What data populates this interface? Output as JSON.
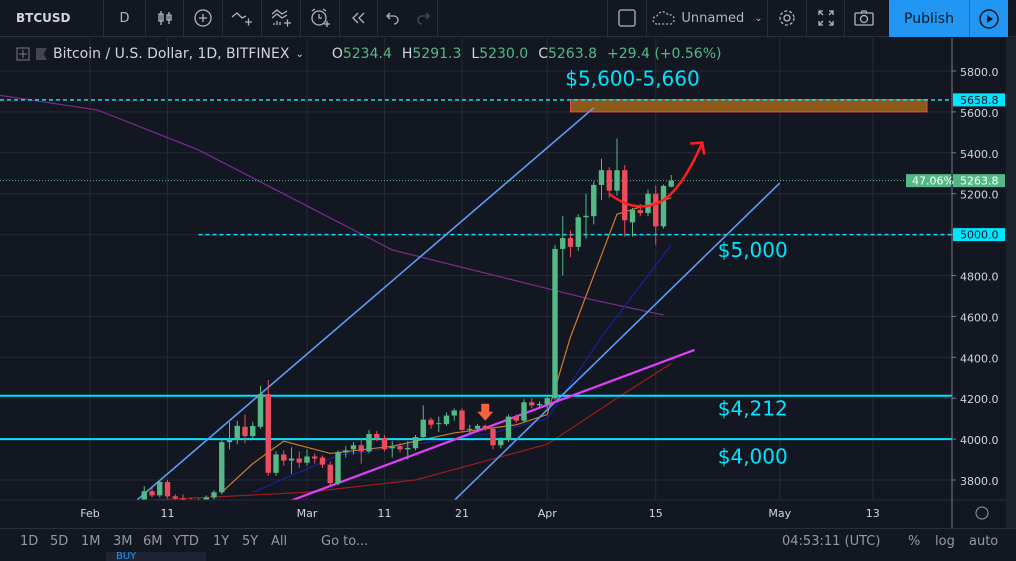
{
  "toolbar": {
    "symbol": "BTCUSD",
    "interval": "D",
    "layout_name": "Unnamed",
    "publish": "Publish",
    "icons": [
      "candles-icon",
      "add-circle-icon",
      "indicators-icon",
      "compare-icon",
      "alert-icon",
      "replay-icon",
      "undo-icon",
      "redo-icon",
      "square-icon",
      "cloud-icon",
      "gear-icon",
      "fullscreen-icon",
      "camera-icon",
      "play-icon"
    ]
  },
  "legend": {
    "title": "Bitcoin / U.S. Dollar, 1D, BITFINEX",
    "o_label": "O",
    "o": "5234.4",
    "h_label": "H",
    "h": "5291.3",
    "l_label": "L",
    "l": "5230.0",
    "c_label": "C",
    "c": "5263.8",
    "change": "+29.4 (+0.56%)"
  },
  "bottom": {
    "ranges": [
      "1D",
      "5D",
      "1M",
      "3M",
      "6M",
      "YTD",
      "1Y",
      "5Y",
      "All"
    ],
    "goto": "Go to...",
    "time": "04:53:11 (UTC)",
    "pct": "%",
    "log": "log",
    "auto": "auto",
    "buy": "BUY"
  },
  "colors": {
    "up": "#53b987",
    "down": "#eb4d5c",
    "cyan": "#00e5ff",
    "magenta": "#e040fb",
    "channel": "#5b9cf6",
    "zone": "#8d5a1a",
    "arrow": "#ff1f1f"
  },
  "chart_data": {
    "type": "candlestick",
    "ylim": [
      3700,
      5900
    ],
    "yticks": [
      "5800.0",
      "5600.0",
      "5400.0",
      "5200.0",
      "5000.0",
      "4800.0",
      "4600.0",
      "4400.0",
      "4200.0",
      "4000.0",
      "3800.0"
    ],
    "xticks": [
      [
        "Feb",
        "Feb 1"
      ],
      [
        "11",
        "Feb 11"
      ],
      [
        "Mar",
        "Mar 1"
      ],
      [
        "11",
        "Mar 11"
      ],
      [
        "21",
        "Mar 21"
      ],
      [
        "Apr",
        "Apr 1"
      ],
      [
        "15",
        "Apr 15"
      ],
      [
        "May",
        "May 1"
      ],
      [
        "13",
        "May 13"
      ]
    ],
    "price_tags": [
      {
        "text": "5658.8",
        "price": 5658.8,
        "color": "#00e5ff"
      },
      {
        "text": "5263.8",
        "price": 5263.8,
        "color": "#53b987",
        "extra": "47.06%"
      },
      {
        "text": "5000.0",
        "price": 5000,
        "color": "#00e5ff"
      }
    ],
    "ohlc": [
      [
        "Feb 8",
        3700,
        3770,
        3690,
        3745
      ],
      [
        "Feb 9",
        3745,
        3760,
        3715,
        3725
      ],
      [
        "Feb 10",
        3725,
        3800,
        3715,
        3790
      ],
      [
        "Feb 11",
        3790,
        3800,
        3710,
        3720
      ],
      [
        "Feb 12",
        3720,
        3730,
        3690,
        3710
      ],
      [
        "Feb 13",
        3710,
        3730,
        3690,
        3700
      ],
      [
        "Feb 14",
        3700,
        3715,
        3680,
        3690
      ],
      [
        "Feb 15",
        3690,
        3710,
        3680,
        3705
      ],
      [
        "Feb 16",
        3705,
        3725,
        3695,
        3715
      ],
      [
        "Feb 17",
        3715,
        3750,
        3705,
        3740
      ],
      [
        "Feb 18",
        3740,
        4000,
        3730,
        3985
      ],
      [
        "Feb 19",
        3985,
        4083,
        3950,
        4000
      ],
      [
        "Feb 20",
        3995,
        4090,
        3975,
        4065
      ],
      [
        "Feb 21",
        4060,
        4120,
        3980,
        4015
      ],
      [
        "Feb 22",
        4015,
        4085,
        4000,
        4064
      ],
      [
        "Feb 23",
        4060,
        4260,
        4050,
        4220
      ],
      [
        "Feb 24",
        4220,
        4289,
        3820,
        3835
      ],
      [
        "Feb 25",
        3835,
        3940,
        3820,
        3925
      ],
      [
        "Feb 26",
        3925,
        3945,
        3870,
        3895
      ],
      [
        "Feb 27",
        3895,
        3960,
        3830,
        3905
      ],
      [
        "Feb 28",
        3905,
        3940,
        3860,
        3885
      ],
      [
        "Mar 1",
        3885,
        3950,
        3870,
        3915
      ],
      [
        "Mar 2",
        3915,
        3930,
        3880,
        3905
      ],
      [
        "Mar 3",
        3910,
        3920,
        3860,
        3875
      ],
      [
        "Mar 4",
        3875,
        3890,
        3770,
        3785
      ],
      [
        "Mar 5",
        3785,
        3945,
        3775,
        3935
      ],
      [
        "Mar 6",
        3935,
        3965,
        3910,
        3945
      ],
      [
        "Mar 7",
        3950,
        3985,
        3925,
        3970
      ],
      [
        "Mar 8",
        3970,
        4000,
        3880,
        3940
      ],
      [
        "Mar 9",
        3940,
        4045,
        3930,
        4025
      ],
      [
        "Mar 10",
        4025,
        4040,
        3990,
        4005
      ],
      [
        "Mar 11",
        4005,
        4020,
        3940,
        3950
      ],
      [
        "Mar 12",
        3955,
        3990,
        3910,
        3962
      ],
      [
        "Mar 13",
        3965,
        3980,
        3935,
        3950
      ],
      [
        "Mar 14",
        3950,
        3990,
        3900,
        3957
      ],
      [
        "Mar 15",
        3955,
        4020,
        3945,
        4010
      ],
      [
        "Mar 16",
        4010,
        4165,
        4000,
        4095
      ],
      [
        "Mar 17",
        4095,
        4105,
        4050,
        4070
      ],
      [
        "Mar 18",
        4075,
        4110,
        4035,
        4078
      ],
      [
        "Mar 19",
        4073,
        4130,
        4065,
        4115
      ],
      [
        "Mar 20",
        4115,
        4150,
        4090,
        4140
      ],
      [
        "Mar 21",
        4140,
        4150,
        4035,
        4045
      ],
      [
        "Mar 22",
        4045,
        4070,
        4030,
        4050
      ],
      [
        "Mar 23",
        4050,
        4075,
        4040,
        4065
      ],
      [
        "Mar 24",
        4065,
        4070,
        4040,
        4050
      ],
      [
        "Mar 25",
        4050,
        4060,
        3950,
        3970
      ],
      [
        "Mar 26",
        3970,
        4010,
        3955,
        3995
      ],
      [
        "Mar 27",
        3995,
        4120,
        3985,
        4110
      ],
      [
        "Mar 28",
        4110,
        4120,
        4080,
        4090
      ],
      [
        "Mar 29",
        4090,
        4195,
        4080,
        4180
      ],
      [
        "Mar 30",
        4180,
        4200,
        4150,
        4165
      ],
      [
        "Mar 31",
        4165,
        4185,
        4155,
        4172
      ],
      [
        "Apr 1",
        4170,
        4215,
        4150,
        4200
      ],
      [
        "Apr 2",
        4200,
        4950,
        4190,
        4930
      ],
      [
        "Apr 3",
        4930,
        5090,
        4800,
        4983
      ],
      [
        "Apr 4",
        4983,
        5020,
        4890,
        4940
      ],
      [
        "Apr 5",
        4940,
        5100,
        4920,
        5085
      ],
      [
        "Apr 6",
        5085,
        5200,
        4980,
        5092
      ],
      [
        "Apr 7",
        5090,
        5260,
        5050,
        5243
      ],
      [
        "Apr 8",
        5243,
        5370,
        5170,
        5315
      ],
      [
        "Apr 9",
        5315,
        5330,
        5180,
        5215
      ],
      [
        "Apr 10",
        5215,
        5470,
        5190,
        5315
      ],
      [
        "Apr 11",
        5315,
        5340,
        4990,
        5070
      ],
      [
        "Apr 12",
        5060,
        5130,
        4990,
        5120
      ],
      [
        "Apr 13",
        5120,
        5150,
        5090,
        5105
      ],
      [
        "Apr 14",
        5105,
        5220,
        5090,
        5200
      ],
      [
        "Apr 15",
        5200,
        5240,
        4950,
        5040
      ],
      [
        "Apr 16",
        5040,
        5245,
        5030,
        5238
      ],
      [
        "Apr 17",
        5234.4,
        5291.3,
        5230.0,
        5263.8
      ]
    ],
    "moving_averages": [
      {
        "color": "#7b2d8e",
        "points": [
          [
            "Jan 20",
            5683
          ],
          [
            "Feb 2",
            5609
          ],
          [
            "Feb 15",
            5414
          ],
          [
            "Mar 12",
            4925
          ],
          [
            "Apr 7",
            4680
          ],
          [
            "Apr 16",
            4607
          ]
        ]
      },
      {
        "color": "#c97d2b",
        "points": [
          [
            "Feb 18",
            3740
          ],
          [
            "Feb 22",
            3880
          ],
          [
            "Feb 26",
            3990
          ],
          [
            "Mar 4",
            3930
          ],
          [
            "Mar 12",
            3965
          ],
          [
            "Mar 20",
            4030
          ],
          [
            "Mar 28",
            4070
          ],
          [
            "Apr 1",
            4120
          ],
          [
            "Apr 4",
            4500
          ],
          [
            "Apr 7",
            4800
          ],
          [
            "Apr 10",
            5100
          ],
          [
            "Apr 17",
            5180
          ]
        ]
      },
      {
        "color": "#1c1f9e",
        "points": [
          [
            "Feb 22",
            3740
          ],
          [
            "Mar 5",
            3920
          ],
          [
            "Mar 25",
            4030
          ],
          [
            "Apr 1",
            4100
          ],
          [
            "Apr 8",
            4500
          ],
          [
            "Apr 17",
            4950
          ]
        ]
      },
      {
        "color": "#9b1c1c",
        "points": [
          [
            "Feb 8",
            3700
          ],
          [
            "Mar 1",
            3740
          ],
          [
            "Mar 15",
            3800
          ],
          [
            "Apr 1",
            3975
          ],
          [
            "Apr 10",
            4200
          ],
          [
            "Apr 17",
            4370
          ]
        ]
      }
    ],
    "drawings": {
      "channel_upper": [
        [
          "Feb 7",
          3700
        ],
        [
          "Apr 7",
          5620
        ]
      ],
      "channel_lower": [
        [
          "Mar 20",
          3700
        ],
        [
          "May 1",
          5252
        ]
      ],
      "trendline": [
        [
          "Feb 27",
          3700
        ],
        [
          "Apr 20",
          4436
        ]
      ],
      "hlines": [
        {
          "price": 4212,
          "style": "solid"
        },
        {
          "price": 4000,
          "style": "solid"
        },
        {
          "price": 5000,
          "style": "dashed",
          "from": "Feb 15"
        },
        {
          "price": 5658.8,
          "style": "dashed"
        }
      ],
      "zone": {
        "from": "Apr 4",
        "to": "May 20",
        "low": 5600,
        "high": 5660
      },
      "arrow_path": [
        [
          "Apr 9",
          5200
        ],
        [
          "Apr 12",
          5110
        ],
        [
          "Apr 15",
          5150
        ],
        [
          "Apr 21",
          5450
        ]
      ],
      "marker": {
        "date": "Mar 24",
        "price": 4090
      },
      "labels": [
        {
          "text": "$5,600-5,660",
          "date": "Apr 12",
          "price": 5730
        },
        {
          "text": "$5,000",
          "date": "Apr 23",
          "price": 4890
        },
        {
          "text": "$4,212",
          "date": "Apr 23",
          "price": 4115
        },
        {
          "text": "$4,000",
          "date": "Apr 23",
          "price": 3880
        }
      ]
    }
  }
}
